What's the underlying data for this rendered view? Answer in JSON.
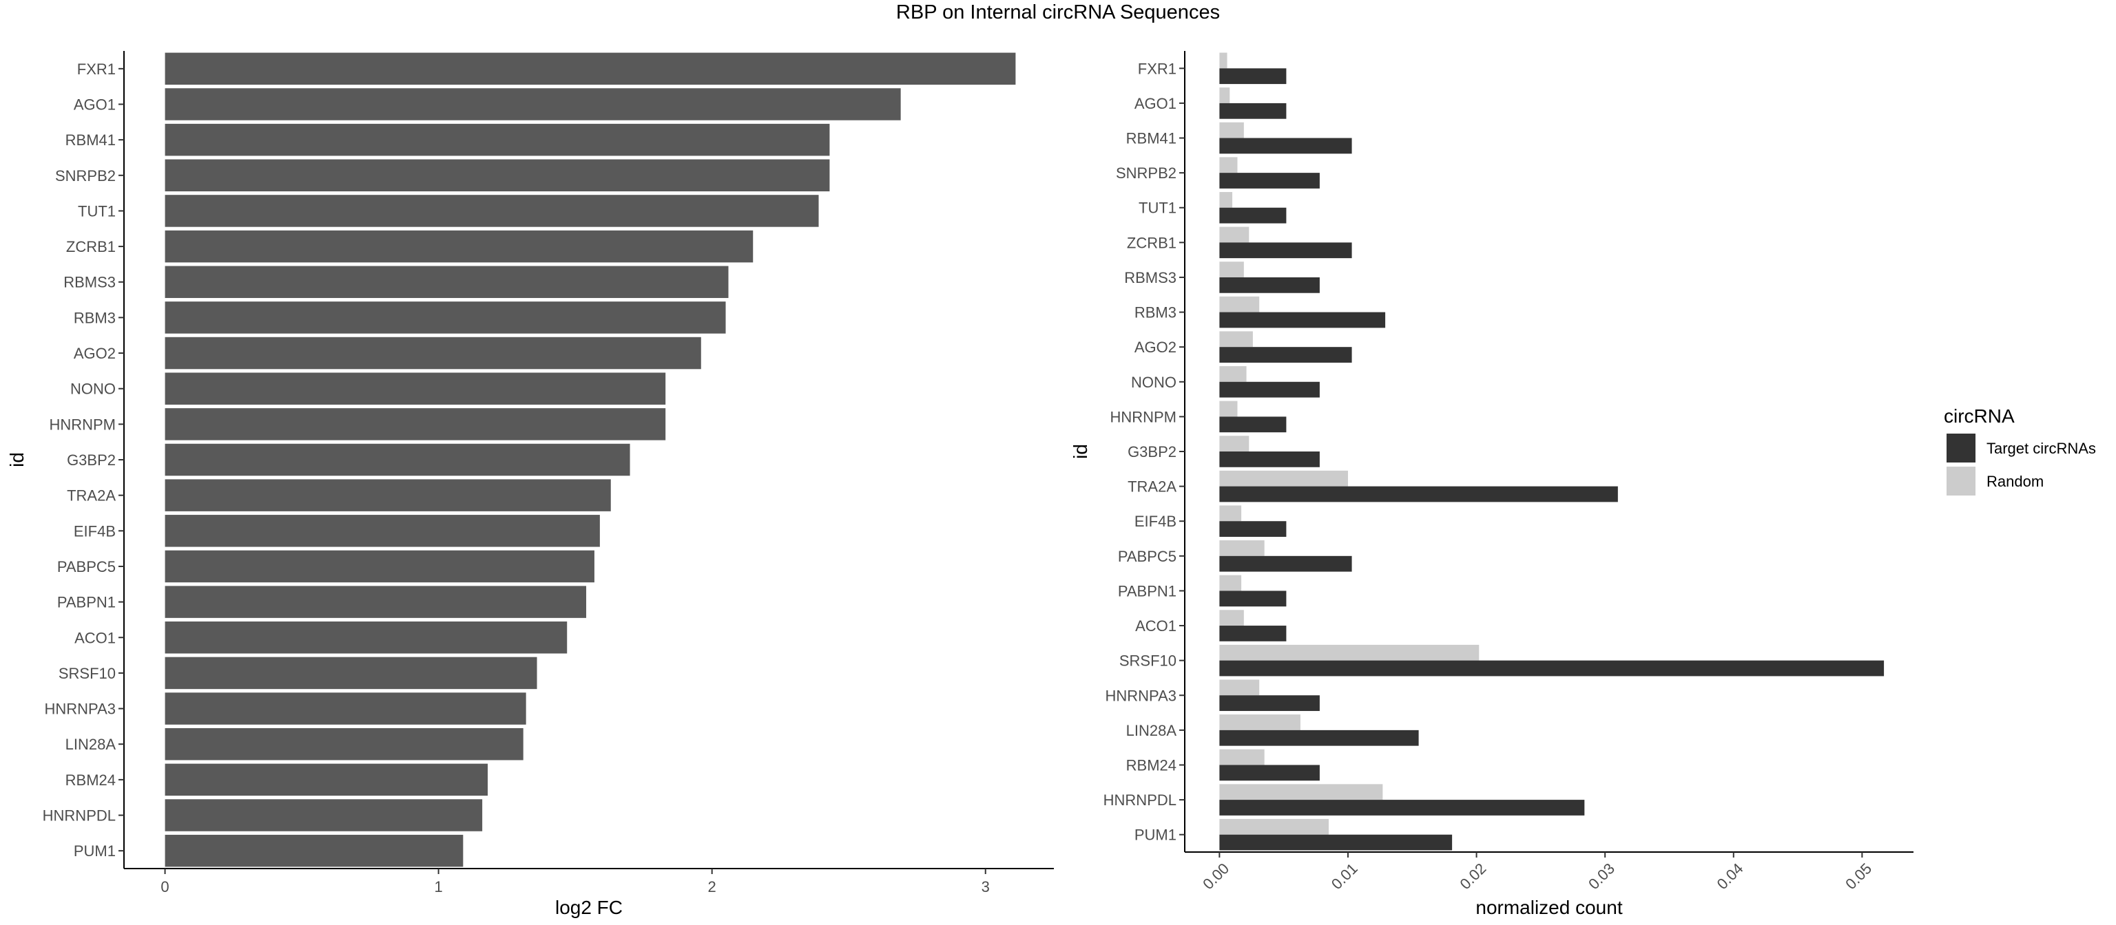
{
  "title": "RBP on Internal circRNA Sequences",
  "chart_data": [
    {
      "type": "bar",
      "orientation": "horizontal",
      "xlabel": "log2 FC",
      "ylabel": "id",
      "xlim": [
        -0.15,
        3.25
      ],
      "x_ticks": [
        0,
        1,
        2,
        3
      ],
      "x_tick_labels": [
        "0",
        "1",
        "2",
        "3"
      ],
      "grid": false,
      "bar_color": "#595959",
      "categories": [
        "FXR1",
        "AGO1",
        "RBM41",
        "SNRPB2",
        "TUT1",
        "ZCRB1",
        "RBMS3",
        "RBM3",
        "AGO2",
        "NONO",
        "HNRNPM",
        "G3BP2",
        "TRA2A",
        "EIF4B",
        "PABPC5",
        "PABPN1",
        "ACO1",
        "SRSF10",
        "HNRNPA3",
        "LIN28A",
        "RBM24",
        "HNRNPDL",
        "PUM1"
      ],
      "values": [
        3.11,
        2.69,
        2.43,
        2.43,
        2.39,
        2.15,
        2.06,
        2.05,
        1.96,
        1.83,
        1.83,
        1.7,
        1.63,
        1.59,
        1.57,
        1.54,
        1.47,
        1.36,
        1.32,
        1.31,
        1.18,
        1.16,
        1.09
      ]
    },
    {
      "type": "bar",
      "orientation": "horizontal",
      "grouped": true,
      "xlabel": "normalized count",
      "ylabel": "id",
      "xlim": [
        -0.0027,
        0.054
      ],
      "x_ticks": [
        0,
        0.01,
        0.02,
        0.03,
        0.04,
        0.05
      ],
      "x_tick_labels": [
        "0.00",
        "0.01",
        "0.02",
        "0.03",
        "0.04",
        "0.05"
      ],
      "grid": false,
      "legend_title": "circRNA",
      "legend_position": "right",
      "categories": [
        "FXR1",
        "AGO1",
        "RBM41",
        "SNRPB2",
        "TUT1",
        "ZCRB1",
        "RBMS3",
        "RBM3",
        "AGO2",
        "NONO",
        "HNRNPM",
        "G3BP2",
        "TRA2A",
        "EIF4B",
        "PABPC5",
        "PABPN1",
        "ACO1",
        "SRSF10",
        "HNRNPA3",
        "LIN28A",
        "RBM24",
        "HNRNPDL",
        "PUM1"
      ],
      "series": [
        {
          "name": "Target circRNAs",
          "color": "#333333",
          "values": [
            0.0052,
            0.0052,
            0.0103,
            0.0078,
            0.0052,
            0.0103,
            0.0078,
            0.0129,
            0.0103,
            0.0078,
            0.0052,
            0.0078,
            0.031,
            0.0052,
            0.0103,
            0.0052,
            0.0052,
            0.0517,
            0.0078,
            0.0155,
            0.0078,
            0.0284,
            0.0181
          ]
        },
        {
          "name": "Random",
          "color": "#cccccc",
          "values": [
            0.0006,
            0.0008,
            0.0019,
            0.0014,
            0.001,
            0.0023,
            0.0019,
            0.0031,
            0.0026,
            0.0021,
            0.0014,
            0.0023,
            0.01,
            0.0017,
            0.0035,
            0.0017,
            0.0019,
            0.0202,
            0.0031,
            0.0063,
            0.0035,
            0.0127,
            0.0085
          ]
        }
      ]
    }
  ]
}
